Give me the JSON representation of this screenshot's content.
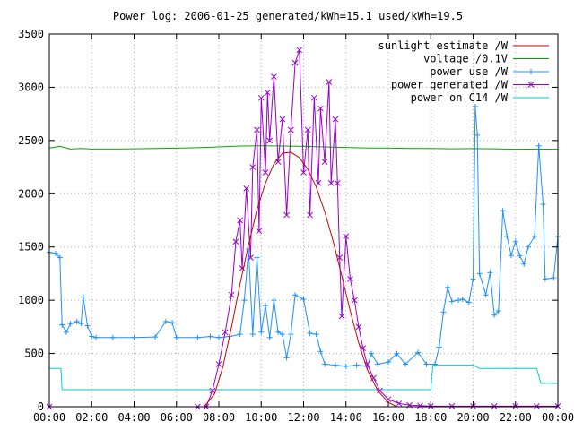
{
  "chart_data": {
    "type": "line",
    "title": "Power log: 2006-01-25 generated/kWh=15.1 used/kWh=19.5",
    "xlabel": "",
    "ylabel": "",
    "xlim": [
      0,
      24
    ],
    "ylim": [
      0,
      3500
    ],
    "grid": true,
    "legend_position": "top-right",
    "x_ticks": [
      {
        "value": 0,
        "label": "00:00"
      },
      {
        "value": 2,
        "label": "02:00"
      },
      {
        "value": 4,
        "label": "04:00"
      },
      {
        "value": 6,
        "label": "06:00"
      },
      {
        "value": 8,
        "label": "08:00"
      },
      {
        "value": 10,
        "label": "10:00"
      },
      {
        "value": 12,
        "label": "12:00"
      },
      {
        "value": 14,
        "label": "14:00"
      },
      {
        "value": 16,
        "label": "16:00"
      },
      {
        "value": 18,
        "label": "18:00"
      },
      {
        "value": 20,
        "label": "20:00"
      },
      {
        "value": 22,
        "label": "22:00"
      },
      {
        "value": 24,
        "label": "00:00"
      }
    ],
    "y_ticks": [
      {
        "value": 0,
        "label": "0"
      },
      {
        "value": 500,
        "label": "500"
      },
      {
        "value": 1000,
        "label": "1000"
      },
      {
        "value": 1500,
        "label": "1500"
      },
      {
        "value": 2000,
        "label": "2000"
      },
      {
        "value": 2500,
        "label": "2500"
      },
      {
        "value": 3000,
        "label": "3000"
      },
      {
        "value": 3500,
        "label": "3500"
      }
    ],
    "series": [
      {
        "name": "sunlight estimate /W",
        "color": "#cc0000",
        "marker": "none",
        "points": [
          [
            7.3,
            0
          ],
          [
            7.8,
            120
          ],
          [
            8.2,
            380
          ],
          [
            8.6,
            750
          ],
          [
            9.0,
            1150
          ],
          [
            9.4,
            1520
          ],
          [
            9.8,
            1850
          ],
          [
            10.2,
            2100
          ],
          [
            10.6,
            2280
          ],
          [
            11.0,
            2380
          ],
          [
            11.4,
            2390
          ],
          [
            11.8,
            2340
          ],
          [
            12.2,
            2230
          ],
          [
            12.6,
            2060
          ],
          [
            13.0,
            1830
          ],
          [
            13.4,
            1550
          ],
          [
            13.8,
            1230
          ],
          [
            14.2,
            900
          ],
          [
            14.6,
            600
          ],
          [
            15.0,
            350
          ],
          [
            15.5,
            150
          ],
          [
            16.0,
            40
          ],
          [
            16.4,
            0
          ]
        ]
      },
      {
        "name": "voltage /0.1V",
        "color": "#00aa00",
        "marker": "none",
        "points": [
          [
            0,
            2430
          ],
          [
            0.5,
            2445
          ],
          [
            1,
            2420
          ],
          [
            1.5,
            2425
          ],
          [
            2,
            2420
          ],
          [
            3,
            2420
          ],
          [
            4,
            2422
          ],
          [
            5,
            2425
          ],
          [
            6,
            2428
          ],
          [
            7,
            2432
          ],
          [
            8,
            2440
          ],
          [
            9,
            2448
          ],
          [
            10,
            2450
          ],
          [
            11,
            2448
          ],
          [
            12,
            2445
          ],
          [
            13,
            2440
          ],
          [
            14,
            2435
          ],
          [
            15,
            2430
          ],
          [
            16,
            2430
          ],
          [
            17,
            2426
          ],
          [
            18,
            2425
          ],
          [
            19,
            2422
          ],
          [
            20,
            2424
          ],
          [
            21,
            2422
          ],
          [
            22,
            2418
          ],
          [
            23,
            2420
          ],
          [
            24,
            2418
          ]
        ]
      },
      {
        "name": "power use /W",
        "color": "#1e90ff",
        "marker": "plus",
        "points": [
          [
            0,
            1450
          ],
          [
            0.3,
            1440
          ],
          [
            0.5,
            1400
          ],
          [
            0.6,
            770
          ],
          [
            0.8,
            700
          ],
          [
            1.0,
            780
          ],
          [
            1.3,
            800
          ],
          [
            1.5,
            780
          ],
          [
            1.6,
            1030
          ],
          [
            1.8,
            760
          ],
          [
            2.0,
            660
          ],
          [
            2.2,
            650
          ],
          [
            3,
            650
          ],
          [
            4,
            650
          ],
          [
            5,
            655
          ],
          [
            5.5,
            800
          ],
          [
            5.8,
            790
          ],
          [
            6.0,
            650
          ],
          [
            7,
            650
          ],
          [
            7.6,
            660
          ],
          [
            8.0,
            650
          ],
          [
            8.5,
            660
          ],
          [
            9.0,
            680
          ],
          [
            9.2,
            1000
          ],
          [
            9.4,
            1480
          ],
          [
            9.6,
            680
          ],
          [
            9.8,
            1400
          ],
          [
            10.0,
            700
          ],
          [
            10.2,
            950
          ],
          [
            10.4,
            650
          ],
          [
            10.6,
            1000
          ],
          [
            10.8,
            700
          ],
          [
            11.0,
            680
          ],
          [
            11.2,
            460
          ],
          [
            11.4,
            680
          ],
          [
            11.6,
            1050
          ],
          [
            12,
            1010
          ],
          [
            12.3,
            690
          ],
          [
            12.6,
            680
          ],
          [
            12.8,
            520
          ],
          [
            13.0,
            400
          ],
          [
            13.5,
            390
          ],
          [
            14,
            380
          ],
          [
            14.5,
            390
          ],
          [
            15,
            380
          ],
          [
            15.2,
            500
          ],
          [
            15.5,
            400
          ],
          [
            16,
            420
          ],
          [
            16.4,
            500
          ],
          [
            16.8,
            400
          ],
          [
            17.4,
            510
          ],
          [
            17.8,
            400
          ],
          [
            18.2,
            400
          ],
          [
            18.4,
            560
          ],
          [
            18.6,
            890
          ],
          [
            18.8,
            1120
          ],
          [
            19.0,
            990
          ],
          [
            19.3,
            1000
          ],
          [
            19.5,
            1010
          ],
          [
            19.8,
            980
          ],
          [
            20.0,
            1200
          ],
          [
            20.1,
            2820
          ],
          [
            20.2,
            2550
          ],
          [
            20.3,
            1250
          ],
          [
            20.6,
            1050
          ],
          [
            20.8,
            1260
          ],
          [
            21.0,
            860
          ],
          [
            21.2,
            900
          ],
          [
            21.4,
            1840
          ],
          [
            21.6,
            1600
          ],
          [
            21.8,
            1420
          ],
          [
            22.0,
            1550
          ],
          [
            22.2,
            1420
          ],
          [
            22.4,
            1340
          ],
          [
            22.6,
            1500
          ],
          [
            22.9,
            1600
          ],
          [
            23.1,
            2450
          ],
          [
            23.3,
            1900
          ],
          [
            23.4,
            1200
          ],
          [
            23.8,
            1210
          ],
          [
            24,
            1600
          ]
        ]
      },
      {
        "name": "power generated /W",
        "color": "#9900cc",
        "marker": "cross",
        "points": [
          [
            0,
            0
          ],
          [
            7,
            0
          ],
          [
            7.4,
            0
          ],
          [
            7.7,
            150
          ],
          [
            8.0,
            400
          ],
          [
            8.3,
            700
          ],
          [
            8.6,
            1050
          ],
          [
            8.8,
            1550
          ],
          [
            9.0,
            1750
          ],
          [
            9.1,
            1300
          ],
          [
            9.3,
            2050
          ],
          [
            9.5,
            1400
          ],
          [
            9.6,
            2250
          ],
          [
            9.8,
            2600
          ],
          [
            9.9,
            1650
          ],
          [
            10.0,
            2900
          ],
          [
            10.2,
            2200
          ],
          [
            10.3,
            2950
          ],
          [
            10.4,
            2500
          ],
          [
            10.6,
            3100
          ],
          [
            10.8,
            2300
          ],
          [
            11.0,
            2700
          ],
          [
            11.2,
            1800
          ],
          [
            11.4,
            2600
          ],
          [
            11.6,
            3230
          ],
          [
            11.8,
            3350
          ],
          [
            12.0,
            2200
          ],
          [
            12.2,
            2600
          ],
          [
            12.3,
            1800
          ],
          [
            12.5,
            2900
          ],
          [
            12.7,
            2100
          ],
          [
            12.8,
            2800
          ],
          [
            13.0,
            2300
          ],
          [
            13.2,
            3050
          ],
          [
            13.3,
            2100
          ],
          [
            13.5,
            2700
          ],
          [
            13.6,
            2100
          ],
          [
            13.7,
            1400
          ],
          [
            13.8,
            850
          ],
          [
            14.0,
            1600
          ],
          [
            14.2,
            1200
          ],
          [
            14.4,
            1000
          ],
          [
            14.6,
            750
          ],
          [
            14.8,
            550
          ],
          [
            15.0,
            400
          ],
          [
            15.3,
            270
          ],
          [
            15.6,
            150
          ],
          [
            16.0,
            70
          ],
          [
            16.5,
            30
          ],
          [
            17.0,
            15
          ],
          [
            17.5,
            10
          ],
          [
            18.0,
            5
          ],
          [
            19,
            5
          ],
          [
            20,
            5
          ],
          [
            21,
            5
          ],
          [
            22,
            5
          ],
          [
            23,
            5
          ],
          [
            24,
            5
          ]
        ]
      },
      {
        "name": "power on C14 /W",
        "color": "#00cccc",
        "marker": "none",
        "points": [
          [
            0,
            360
          ],
          [
            0.55,
            360
          ],
          [
            0.6,
            160
          ],
          [
            2,
            160
          ],
          [
            4,
            160
          ],
          [
            6,
            160
          ],
          [
            8,
            160
          ],
          [
            10,
            160
          ],
          [
            12,
            160
          ],
          [
            14,
            160
          ],
          [
            16,
            160
          ],
          [
            17.5,
            160
          ],
          [
            18,
            160
          ],
          [
            18.1,
            390
          ],
          [
            19,
            390
          ],
          [
            20,
            390
          ],
          [
            20.3,
            360
          ],
          [
            21,
            360
          ],
          [
            22,
            360
          ],
          [
            23,
            360
          ],
          [
            23.2,
            220
          ],
          [
            24,
            220
          ]
        ]
      }
    ]
  }
}
